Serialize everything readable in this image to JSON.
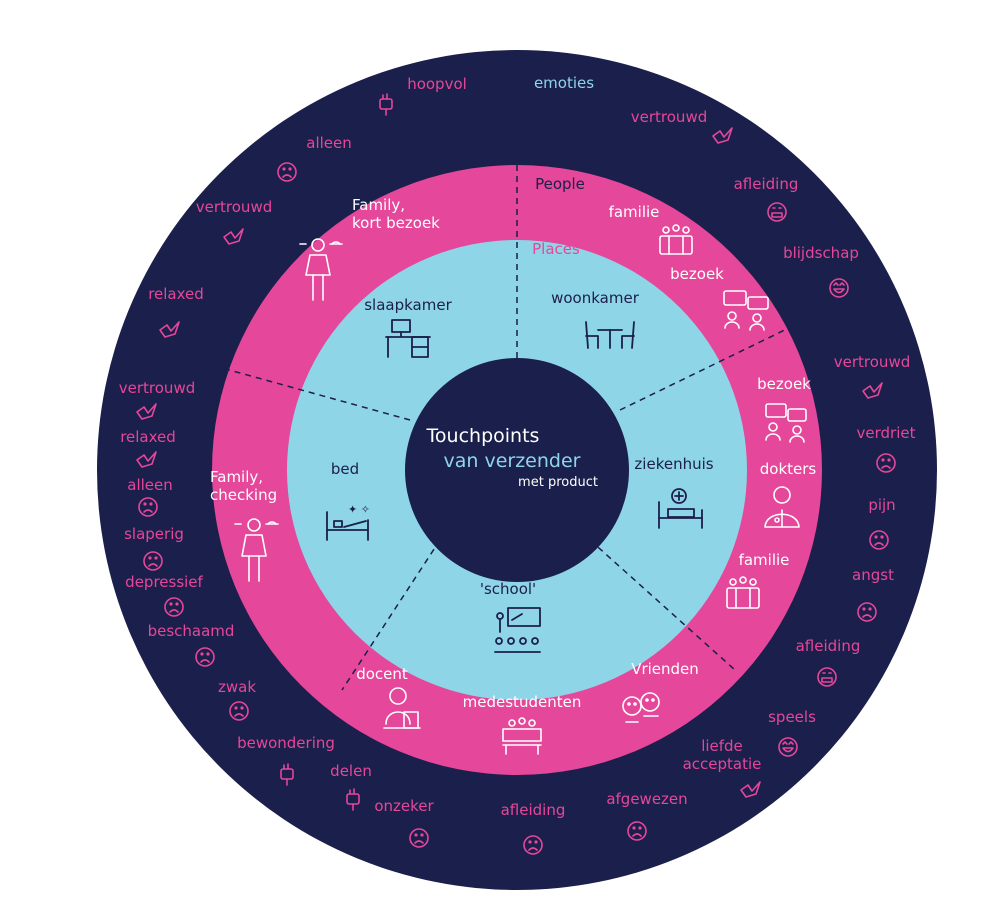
{
  "colors": {
    "navy": "#1b1f4b",
    "pink": "#e5479a",
    "light_blue": "#8fd5e8",
    "white": "#ffffff"
  },
  "center": {
    "title": "Touchpoints",
    "subtitle": "van verzender",
    "note": "met product"
  },
  "rings": {
    "outer_title": "emoties",
    "middle_title": "People",
    "inner_title": "Places"
  },
  "places": [
    {
      "label": "slaapkamer",
      "icon": "desk-icon"
    },
    {
      "label": "woonkamer",
      "icon": "dining-table-icon"
    },
    {
      "label": "ziekenhuis",
      "icon": "hospital-bed-icon"
    },
    {
      "label": "'school'",
      "icon": "classroom-icon"
    },
    {
      "label": "bed",
      "icon": "bed-icon"
    }
  ],
  "people": [
    {
      "label": "Family,\nkort bezoek",
      "icon": "waiter-icon"
    },
    {
      "label": "familie",
      "icon": "family-group-icon"
    },
    {
      "label": "bezoek",
      "icon": "conversation-icon"
    },
    {
      "label": "bezoek",
      "icon": "conversation-icon"
    },
    {
      "label": "dokters",
      "icon": "doctor-icon"
    },
    {
      "label": "familie",
      "icon": "family-group-icon"
    },
    {
      "label": "Vrienden",
      "icon": "friends-icon"
    },
    {
      "label": "medestudenten",
      "icon": "students-icon"
    },
    {
      "label": "docent",
      "icon": "teacher-icon"
    },
    {
      "label": "Family,\nchecking",
      "icon": "waiter-icon"
    }
  ],
  "emotions": [
    {
      "label": "hoopvol",
      "icon": "raised-fist-icon"
    },
    {
      "label": "vertrouwd",
      "icon": "dove-icon"
    },
    {
      "label": "afleiding",
      "icon": "grimace-icon"
    },
    {
      "label": "blijdschap",
      "icon": "laugh-icon"
    },
    {
      "label": "vertrouwd",
      "icon": "dove-icon"
    },
    {
      "label": "verdriet",
      "icon": "sad-face-icon"
    },
    {
      "label": "pijn",
      "icon": "sad-face-icon"
    },
    {
      "label": "angst",
      "icon": "sad-face-icon"
    },
    {
      "label": "afleiding",
      "icon": "grimace-icon"
    },
    {
      "label": "speels",
      "icon": "laugh-icon"
    },
    {
      "label": "liefde\nacceptatie",
      "icon": "dove-icon"
    },
    {
      "label": "afgewezen",
      "icon": "sad-face-icon"
    },
    {
      "label": "afleiding",
      "icon": "sad-face-icon"
    },
    {
      "label": "onzeker",
      "icon": "sad-face-icon"
    },
    {
      "label": "delen",
      "icon": "raised-fist-icon"
    },
    {
      "label": "bewondering",
      "icon": "raised-fist-icon"
    },
    {
      "label": "zwak",
      "icon": "sad-face-icon"
    },
    {
      "label": "beschaamd",
      "icon": "sad-face-icon"
    },
    {
      "label": "depressief",
      "icon": "sad-face-icon"
    },
    {
      "label": "slaperig",
      "icon": "sad-face-icon"
    },
    {
      "label": "alleen",
      "icon": "sad-face-icon"
    },
    {
      "label": "relaxed",
      "icon": "dove-icon"
    },
    {
      "label": "vertrouwd",
      "icon": "dove-icon"
    },
    {
      "label": "relaxed",
      "icon": "dove-icon"
    },
    {
      "label": "vertrouwd",
      "icon": "dove-icon"
    },
    {
      "label": "alleen",
      "icon": "sad-face-icon"
    }
  ]
}
